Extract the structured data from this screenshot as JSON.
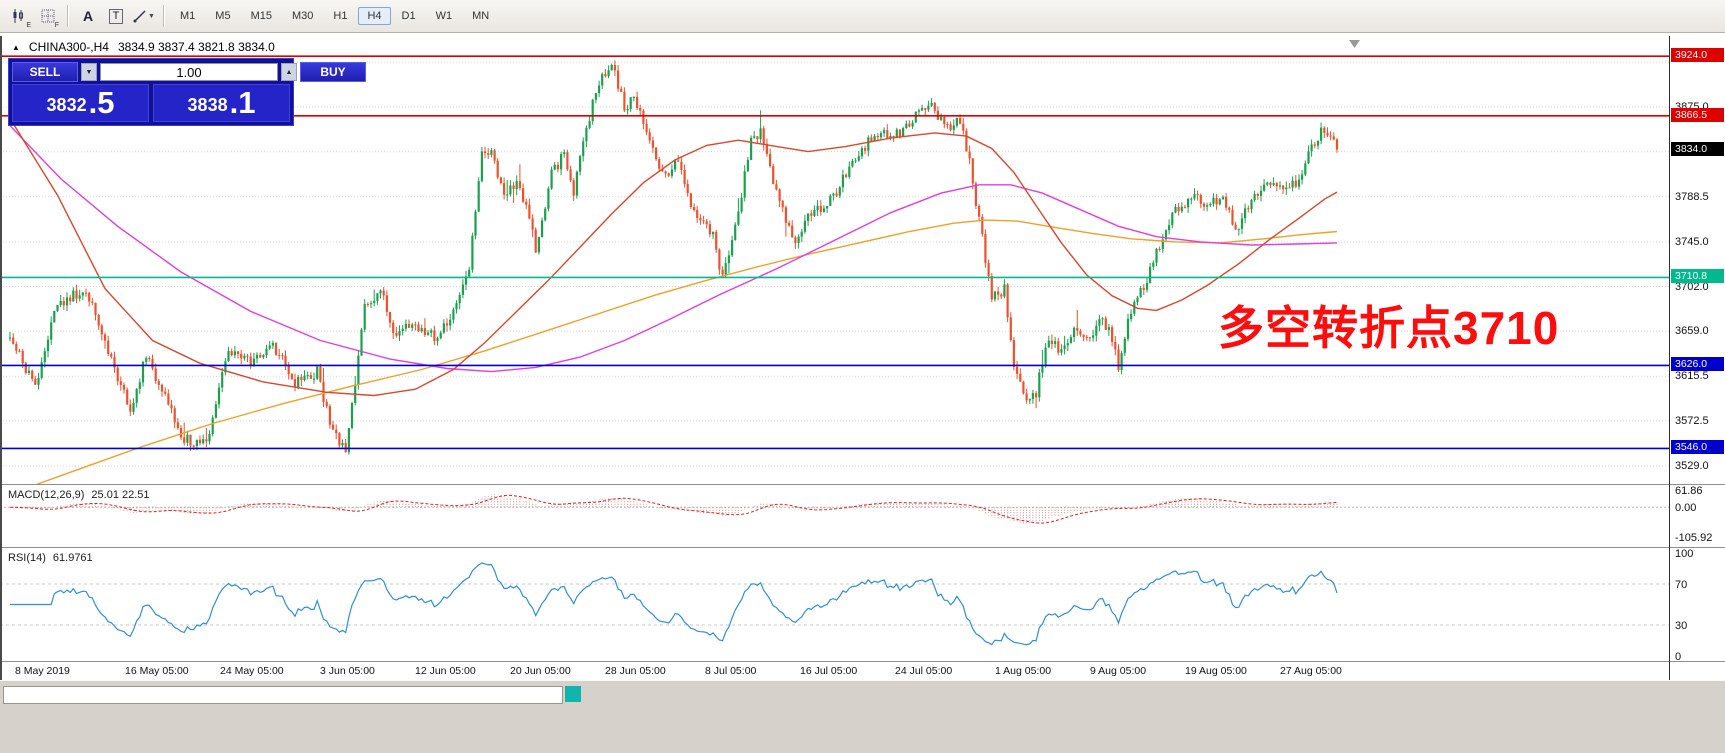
{
  "toolbar": {
    "icon_labels": {
      "e": "E",
      "f": "F",
      "a": "A",
      "t": "T",
      "dropdown": "▼"
    },
    "timeframes": [
      "M1",
      "M5",
      "M15",
      "M30",
      "H1",
      "H4",
      "D1",
      "W1",
      "MN"
    ],
    "active_timeframe": "H4"
  },
  "chart": {
    "collapse_glyph": "▲",
    "title_symbol": "CHINA300-,H4",
    "title_ohlc": "3834.9 3837.4 3821.8 3834.0",
    "annotation": "多空转折点3710",
    "annotation_color": "#ff0c0c",
    "current_price_tag": {
      "value": "3834.0",
      "bg": "#000000",
      "fg": "#ffffff"
    },
    "axis_values": [
      "3875.0",
      "3788.5",
      "3745.0",
      "3702.0",
      "3659.0",
      "3615.5",
      "3572.5",
      "3529.0"
    ],
    "hlines": [
      {
        "value": "3924.0",
        "price": 3924.0,
        "color": "#dd0000"
      },
      {
        "value": "3866.5",
        "price": 3866.5,
        "color": "#dd0000"
      },
      {
        "value": "3710.8",
        "price": 3710.8,
        "color": "#00b98d"
      },
      {
        "value": "3626.0",
        "price": 3626.0,
        "color": "#0000cc"
      },
      {
        "value": "3546.0",
        "price": 3546.0,
        "color": "#0000cc"
      }
    ],
    "colors": {
      "up": "#1aa14d",
      "down": "#f0512b",
      "grid": "#d9d9d9"
    }
  },
  "trade_panel": {
    "sell_label": "SELL",
    "buy_label": "BUY",
    "volume": "1.00",
    "spin_down": "▼",
    "spin_up": "▲",
    "sell_price_main": "3832",
    "sell_price_frac": ".5",
    "buy_price_main": "3838",
    "buy_price_frac": ".1"
  },
  "macd": {
    "label": "MACD(12,26,9)",
    "values": "25.01 22.51",
    "axis": [
      "61.86",
      "0.00",
      "-105.92"
    ]
  },
  "rsi": {
    "label": "RSI(14)",
    "value": "61.9761",
    "axis": [
      "100",
      "70",
      "30",
      "0"
    ],
    "levels": [
      70,
      30
    ]
  },
  "time_axis": [
    "8 May 2019",
    "16 May 05:00",
    "24 May 05:00",
    "3 Jun 05:00",
    "12 Jun 05:00",
    "20 Jun 05:00",
    "28 Jun 05:00",
    "8 Jul 05:00",
    "16 Jul 05:00",
    "24 Jul 05:00",
    "1 Aug 05:00",
    "9 Aug 05:00",
    "19 Aug 05:00",
    "27 Aug 05:00"
  ],
  "chart_data": {
    "type": "candlestick",
    "symbol": "CHINA300-",
    "period": "H4",
    "ohlc_current": {
      "open": 3834.9,
      "high": 3837.4,
      "low": 3821.8,
      "close": 3834.0
    },
    "num_candles": 420,
    "ylim": [
      3517,
      3943
    ],
    "grid_prices": [
      3529,
      3572.5,
      3615.5,
      3659,
      3702,
      3745,
      3788.5,
      3831.8,
      3875,
      3918.3
    ],
    "price_keyframes": [
      [
        0,
        3655
      ],
      [
        8,
        3605
      ],
      [
        15,
        3685
      ],
      [
        24,
        3700
      ],
      [
        31,
        3640
      ],
      [
        38,
        3580
      ],
      [
        43,
        3635
      ],
      [
        48,
        3600
      ],
      [
        55,
        3555
      ],
      [
        62,
        3550
      ],
      [
        69,
        3640
      ],
      [
        76,
        3630
      ],
      [
        83,
        3645
      ],
      [
        90,
        3610
      ],
      [
        97,
        3620
      ],
      [
        102,
        3560
      ],
      [
        106,
        3545
      ],
      [
        112,
        3680
      ],
      [
        117,
        3700
      ],
      [
        121,
        3655
      ],
      [
        128,
        3665
      ],
      [
        135,
        3650
      ],
      [
        140,
        3680
      ],
      [
        145,
        3720
      ],
      [
        149,
        3830
      ],
      [
        152,
        3835
      ],
      [
        156,
        3790
      ],
      [
        161,
        3800
      ],
      [
        166,
        3740
      ],
      [
        171,
        3810
      ],
      [
        175,
        3830
      ],
      [
        178,
        3795
      ],
      [
        184,
        3880
      ],
      [
        187,
        3905
      ],
      [
        190,
        3920
      ],
      [
        194,
        3875
      ],
      [
        197,
        3885
      ],
      [
        203,
        3840
      ],
      [
        206,
        3810
      ],
      [
        211,
        3820
      ],
      [
        216,
        3775
      ],
      [
        222,
        3750
      ],
      [
        225,
        3710
      ],
      [
        229,
        3760
      ],
      [
        234,
        3840
      ],
      [
        237,
        3850
      ],
      [
        241,
        3800
      ],
      [
        246,
        3760
      ],
      [
        248,
        3740
      ],
      [
        253,
        3775
      ],
      [
        258,
        3780
      ],
      [
        264,
        3810
      ],
      [
        269,
        3835
      ],
      [
        274,
        3850
      ],
      [
        279,
        3845
      ],
      [
        284,
        3860
      ],
      [
        291,
        3880
      ],
      [
        295,
        3855
      ],
      [
        300,
        3860
      ],
      [
        303,
        3820
      ],
      [
        307,
        3750
      ],
      [
        310,
        3690
      ],
      [
        314,
        3700
      ],
      [
        317,
        3620
      ],
      [
        321,
        3590
      ],
      [
        324,
        3600
      ],
      [
        328,
        3655
      ],
      [
        331,
        3640
      ],
      [
        337,
        3660
      ],
      [
        340,
        3650
      ],
      [
        344,
        3670
      ],
      [
        347,
        3660
      ],
      [
        350,
        3625
      ],
      [
        354,
        3680
      ],
      [
        359,
        3710
      ],
      [
        364,
        3750
      ],
      [
        369,
        3780
      ],
      [
        375,
        3790
      ],
      [
        378,
        3780
      ],
      [
        383,
        3790
      ],
      [
        387,
        3755
      ],
      [
        392,
        3785
      ],
      [
        397,
        3805
      ],
      [
        401,
        3795
      ],
      [
        406,
        3800
      ],
      [
        411,
        3835
      ],
      [
        415,
        3855
      ],
      [
        419,
        3834
      ]
    ],
    "ma_lines": [
      {
        "name": "ma-long-orange",
        "color": "#f0a028",
        "points": [
          [
            0,
            3502
          ],
          [
            20,
            3524
          ],
          [
            42,
            3548
          ],
          [
            64,
            3570
          ],
          [
            86,
            3589
          ],
          [
            108,
            3606
          ],
          [
            130,
            3622
          ],
          [
            150,
            3640
          ],
          [
            168,
            3658
          ],
          [
            186,
            3676
          ],
          [
            204,
            3694
          ],
          [
            220,
            3708
          ],
          [
            236,
            3721
          ],
          [
            252,
            3733
          ],
          [
            268,
            3744
          ],
          [
            284,
            3755
          ],
          [
            298,
            3763
          ],
          [
            308,
            3766
          ],
          [
            318,
            3765
          ],
          [
            330,
            3759
          ],
          [
            342,
            3753
          ],
          [
            354,
            3748
          ],
          [
            368,
            3745
          ],
          [
            382,
            3744
          ],
          [
            396,
            3748
          ],
          [
            408,
            3752
          ],
          [
            419,
            3755
          ]
        ]
      },
      {
        "name": "ma-slow-magenta",
        "color": "#e03ee0",
        "points": [
          [
            0,
            3857
          ],
          [
            16,
            3806
          ],
          [
            34,
            3760
          ],
          [
            54,
            3716
          ],
          [
            76,
            3678
          ],
          [
            98,
            3650
          ],
          [
            120,
            3632
          ],
          [
            138,
            3623
          ],
          [
            152,
            3620
          ],
          [
            166,
            3624
          ],
          [
            180,
            3634
          ],
          [
            194,
            3650
          ],
          [
            208,
            3670
          ],
          [
            224,
            3694
          ],
          [
            242,
            3719
          ],
          [
            260,
            3746
          ],
          [
            278,
            3773
          ],
          [
            294,
            3792
          ],
          [
            306,
            3800
          ],
          [
            316,
            3800
          ],
          [
            326,
            3792
          ],
          [
            338,
            3776
          ],
          [
            350,
            3760
          ],
          [
            362,
            3750
          ],
          [
            376,
            3745
          ],
          [
            392,
            3742
          ],
          [
            406,
            3743
          ],
          [
            419,
            3744
          ]
        ]
      },
      {
        "name": "ma-fast-red",
        "color": "#d8482c",
        "points": [
          [
            0,
            3864
          ],
          [
            15,
            3790
          ],
          [
            30,
            3700
          ],
          [
            45,
            3650
          ],
          [
            60,
            3628
          ],
          [
            80,
            3610
          ],
          [
            100,
            3600
          ],
          [
            115,
            3597
          ],
          [
            128,
            3603
          ],
          [
            140,
            3622
          ],
          [
            150,
            3648
          ],
          [
            160,
            3678
          ],
          [
            170,
            3708
          ],
          [
            180,
            3740
          ],
          [
            190,
            3772
          ],
          [
            200,
            3802
          ],
          [
            210,
            3824
          ],
          [
            220,
            3838
          ],
          [
            230,
            3843
          ],
          [
            240,
            3838
          ],
          [
            252,
            3832
          ],
          [
            264,
            3837
          ],
          [
            278,
            3845
          ],
          [
            292,
            3850
          ],
          [
            302,
            3847
          ],
          [
            310,
            3835
          ],
          [
            317,
            3812
          ],
          [
            324,
            3780
          ],
          [
            332,
            3744
          ],
          [
            340,
            3713
          ],
          [
            348,
            3693
          ],
          [
            356,
            3681
          ],
          [
            362,
            3679
          ],
          [
            370,
            3689
          ],
          [
            378,
            3703
          ],
          [
            388,
            3724
          ],
          [
            398,
            3748
          ],
          [
            408,
            3770
          ],
          [
            415,
            3786
          ],
          [
            419,
            3793
          ]
        ]
      }
    ],
    "macd_range": [
      -140,
      78
    ],
    "rsi_range": [
      -5,
      105
    ]
  }
}
